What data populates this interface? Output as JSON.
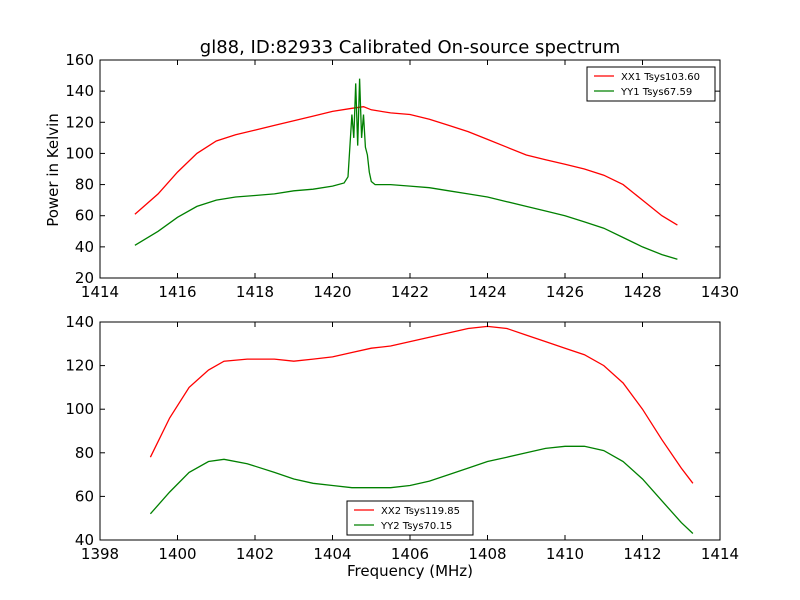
{
  "chart_data": [
    {
      "type": "line",
      "title": "gl88, ID:82933 Calibrated On-source spectrum",
      "xlabel": "",
      "ylabel": "Power in Kelvin",
      "xlim": [
        1414,
        1430
      ],
      "ylim": [
        20,
        160
      ],
      "xticks": [
        "1414",
        "1416",
        "1418",
        "1420",
        "1422",
        "1424",
        "1426",
        "1428",
        "1430"
      ],
      "yticks": [
        "20",
        "40",
        "60",
        "80",
        "100",
        "120",
        "140",
        "160"
      ],
      "legend_position": "top-right",
      "series": [
        {
          "name": "XX1 Tsys103.60",
          "color": "#ff0000",
          "x": [
            1414.9,
            1415.5,
            1416.0,
            1416.5,
            1417.0,
            1417.5,
            1418.0,
            1418.5,
            1419.0,
            1419.5,
            1420.0,
            1420.5,
            1420.8,
            1421.0,
            1421.5,
            1422.0,
            1422.5,
            1423.0,
            1423.5,
            1424.0,
            1424.5,
            1425.0,
            1425.5,
            1426.0,
            1426.5,
            1427.0,
            1427.5,
            1428.0,
            1428.5,
            1428.9
          ],
          "y": [
            61,
            74,
            88,
            100,
            108,
            112,
            115,
            118,
            121,
            124,
            127,
            129,
            130,
            128,
            126,
            125,
            122,
            118,
            114,
            109,
            104,
            99,
            96,
            93,
            90,
            86,
            80,
            70,
            60,
            54
          ]
        },
        {
          "name": "YY1 Tsys67.59",
          "color": "#008000",
          "x": [
            1414.9,
            1415.5,
            1416.0,
            1416.5,
            1417.0,
            1417.5,
            1418.0,
            1418.5,
            1419.0,
            1419.5,
            1420.0,
            1420.3,
            1420.4,
            1420.5,
            1420.55,
            1420.6,
            1420.65,
            1420.7,
            1420.75,
            1420.8,
            1420.85,
            1420.9,
            1420.95,
            1421.0,
            1421.1,
            1421.5,
            1422.0,
            1422.5,
            1423.0,
            1423.5,
            1424.0,
            1424.5,
            1425.0,
            1425.5,
            1426.0,
            1426.5,
            1427.0,
            1427.5,
            1428.0,
            1428.5,
            1428.9
          ],
          "y": [
            41,
            50,
            59,
            66,
            70,
            72,
            73,
            74,
            76,
            77,
            79,
            81,
            85,
            125,
            110,
            145,
            105,
            148,
            110,
            125,
            104,
            99,
            88,
            82,
            80,
            80,
            79,
            78,
            76,
            74,
            72,
            69,
            66,
            63,
            60,
            56,
            52,
            46,
            40,
            35,
            32
          ]
        }
      ]
    },
    {
      "type": "line",
      "title": "",
      "xlabel": "Frequency (MHz)",
      "ylabel": "",
      "xlim": [
        1398,
        1414
      ],
      "ylim": [
        40,
        140
      ],
      "xticks": [
        "1398",
        "1400",
        "1402",
        "1404",
        "1406",
        "1408",
        "1410",
        "1412",
        "1414"
      ],
      "yticks": [
        "40",
        "60",
        "80",
        "100",
        "120",
        "140"
      ],
      "legend_position": "bottom-center",
      "series": [
        {
          "name": "XX2 Tsys119.85",
          "color": "#ff0000",
          "x": [
            1399.3,
            1399.8,
            1400.3,
            1400.8,
            1401.2,
            1401.8,
            1402.5,
            1403.0,
            1403.5,
            1404.0,
            1404.5,
            1405.0,
            1405.5,
            1406.0,
            1406.5,
            1407.0,
            1407.5,
            1408.0,
            1408.5,
            1409.0,
            1409.5,
            1410.0,
            1410.5,
            1411.0,
            1411.5,
            1412.0,
            1412.5,
            1413.0,
            1413.3
          ],
          "y": [
            78,
            96,
            110,
            118,
            122,
            123,
            123,
            122,
            123,
            124,
            126,
            128,
            129,
            131,
            133,
            135,
            137,
            138,
            137,
            134,
            131,
            128,
            125,
            120,
            112,
            100,
            86,
            73,
            66
          ]
        },
        {
          "name": "YY2 Tsys70.15",
          "color": "#008000",
          "x": [
            1399.3,
            1399.8,
            1400.3,
            1400.8,
            1401.2,
            1401.8,
            1402.5,
            1403.0,
            1403.5,
            1404.0,
            1404.5,
            1405.0,
            1405.5,
            1406.0,
            1406.5,
            1407.0,
            1407.5,
            1408.0,
            1408.5,
            1409.0,
            1409.5,
            1410.0,
            1410.5,
            1411.0,
            1411.5,
            1412.0,
            1412.5,
            1413.0,
            1413.3
          ],
          "y": [
            52,
            62,
            71,
            76,
            77,
            75,
            71,
            68,
            66,
            65,
            64,
            64,
            64,
            65,
            67,
            70,
            73,
            76,
            78,
            80,
            82,
            83,
            83,
            81,
            76,
            68,
            58,
            48,
            43
          ]
        }
      ]
    }
  ]
}
